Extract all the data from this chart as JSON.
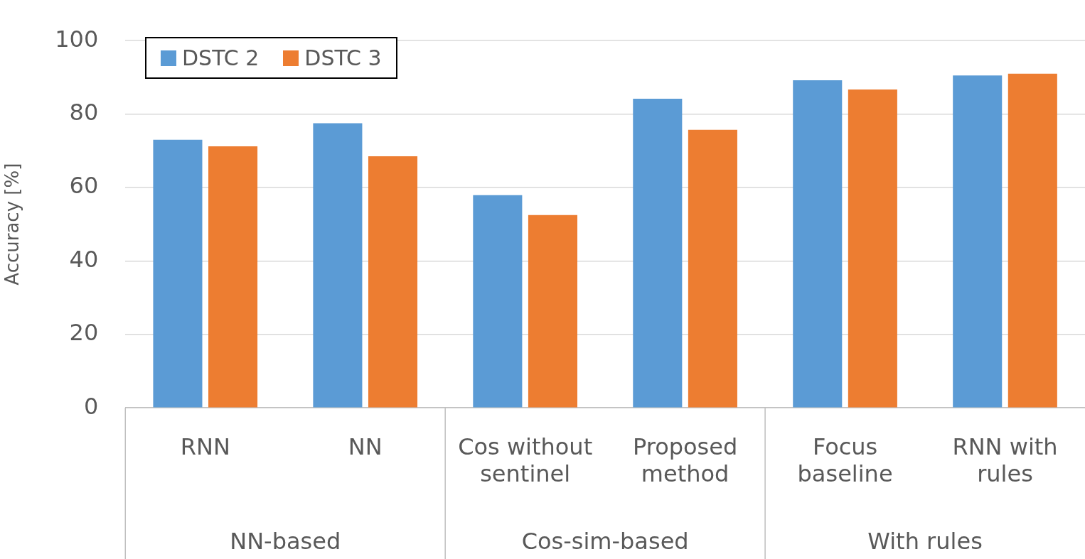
{
  "chart_data": {
    "type": "bar",
    "ylabel": "Accuracy [%]",
    "categories": [
      "RNN",
      "NN",
      "Cos without sentinel",
      "Proposed method",
      "Focus baseline",
      "RNN with rules"
    ],
    "series": [
      {
        "name": "DSTC 2",
        "color": "#5b9bd5",
        "values": [
          73.0,
          77.5,
          57.9,
          84.2,
          89.2,
          90.5
        ]
      },
      {
        "name": "DSTC 3",
        "color": "#ed7d31",
        "values": [
          71.2,
          68.5,
          52.5,
          75.7,
          86.7,
          91.0
        ]
      }
    ],
    "annotations": [
      "NN-based",
      "Cos-sim-based",
      "With rules"
    ],
    "ylim": [
      0,
      100
    ],
    "yticks": [
      0,
      20,
      40,
      60,
      80,
      100
    ],
    "grid": "y",
    "legend": "top left"
  }
}
